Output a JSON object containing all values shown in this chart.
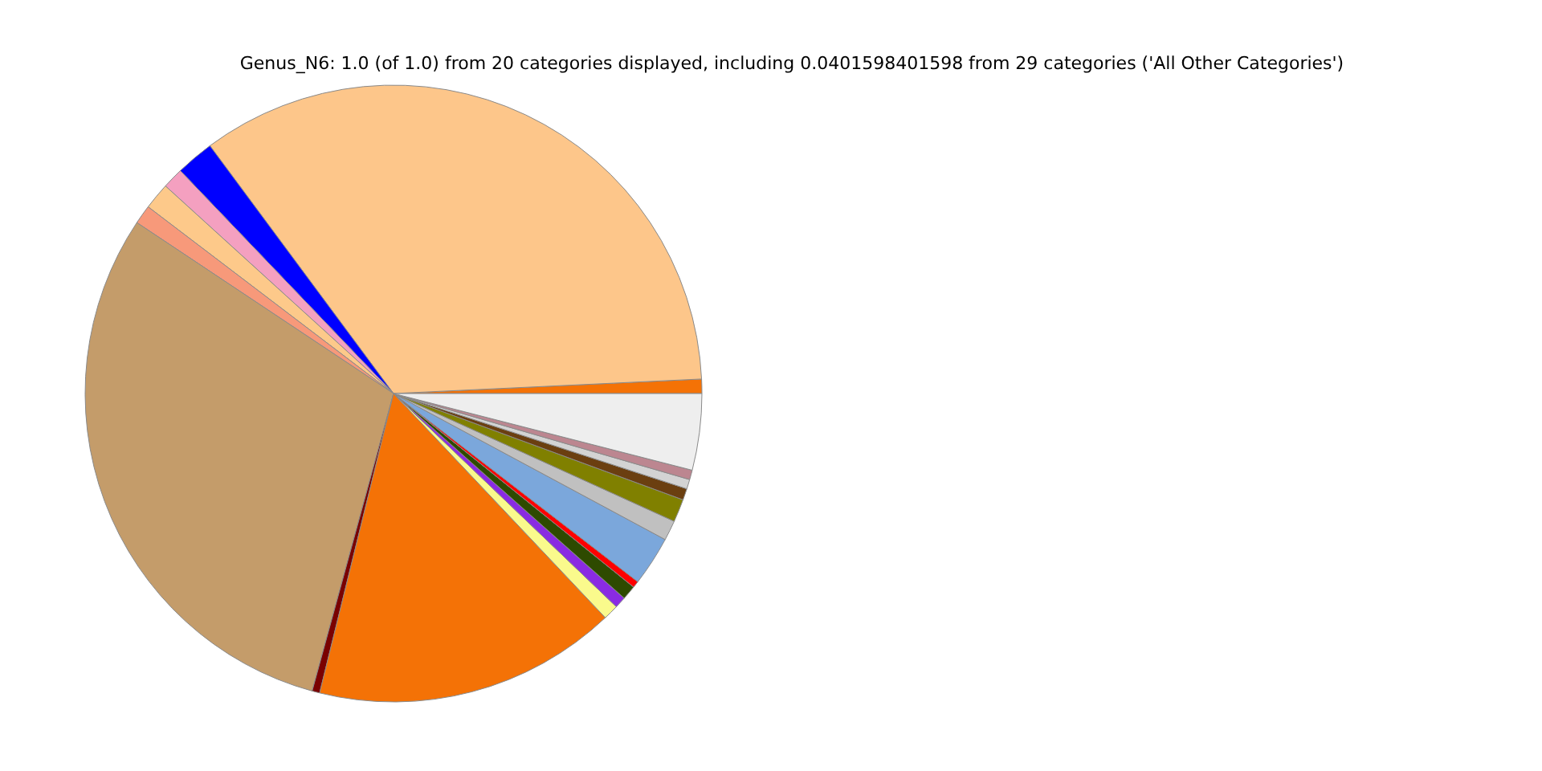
{
  "chart_data": {
    "type": "pie",
    "title": "Genus_N6: 1.0 (of 1.0) from 20 categories displayed, including 0.0401598401598 from 29 categories ('All Other Categories')",
    "categories": [
      null,
      null,
      null,
      null,
      null,
      null,
      null,
      null,
      null,
      null,
      null,
      null,
      null,
      null,
      null,
      null,
      null,
      null,
      null,
      null
    ],
    "values": [
      0.75,
      34.4,
      2.0,
      1.1,
      1.4,
      1.0,
      30.1,
      0.4,
      15.9,
      0.8,
      0.6,
      0.75,
      0.35,
      2.6,
      1.05,
      1.2,
      0.6,
      0.5,
      0.5,
      4.0
    ],
    "colors": [
      "#f47206",
      "#fdc68a",
      "#0000ff",
      "#f4a0c0",
      "#fdc98a",
      "#f7997a",
      "#c49c6a",
      "#7a0000",
      "#f47206",
      "#fafa8c",
      "#8a2be2",
      "#2e4a00",
      "#ff0000",
      "#7ba7db",
      "#c0c0c0",
      "#808000",
      "#6b3f10",
      "#d3d3d3",
      "#bc8690",
      "#eeeeee"
    ],
    "legend": false
  }
}
